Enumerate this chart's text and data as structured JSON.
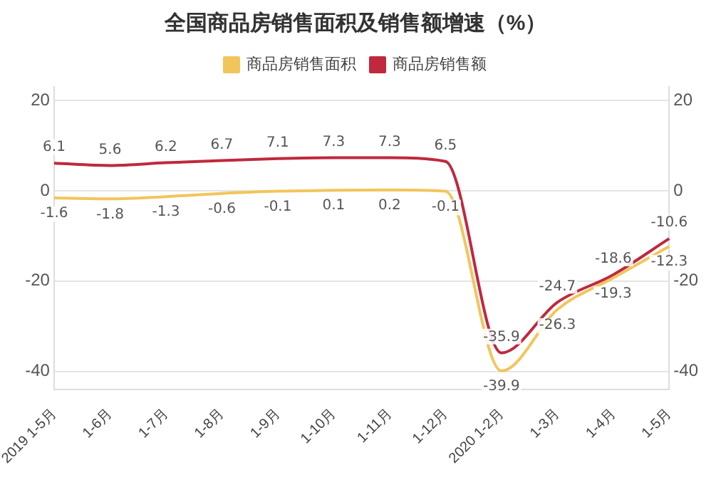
{
  "chart_data": {
    "type": "line",
    "title": "全国商品房销售面积及销售额增速（%）",
    "categories": [
      "2019 1-5月",
      "1-6月",
      "1-7月",
      "1-8月",
      "1-9月",
      "1-10月",
      "1-11月",
      "1-12月",
      "2020 1-2月",
      "1-3月",
      "1-4月",
      "1-5月"
    ],
    "series": [
      {
        "name": "商品房销售面积",
        "color": "#f2c55c",
        "values": [
          -1.6,
          -1.8,
          -1.3,
          -0.6,
          -0.1,
          0.1,
          0.2,
          -0.1,
          -39.9,
          -26.3,
          -19.3,
          -12.3
        ]
      },
      {
        "name": "商品房销售额",
        "color": "#c0283e",
        "values": [
          6.1,
          5.6,
          6.2,
          6.7,
          7.1,
          7.3,
          7.3,
          6.5,
          -35.9,
          -24.7,
          -18.6,
          -10.6
        ]
      }
    ],
    "ylim": [
      -44,
      23
    ],
    "yticks": [
      -40,
      -20,
      0,
      20
    ],
    "y2lim": [
      -44,
      23
    ],
    "y2ticks": [
      -40,
      -20,
      0,
      20
    ],
    "grid": "y",
    "legend": "top",
    "data_labels": true,
    "marker": "none"
  }
}
